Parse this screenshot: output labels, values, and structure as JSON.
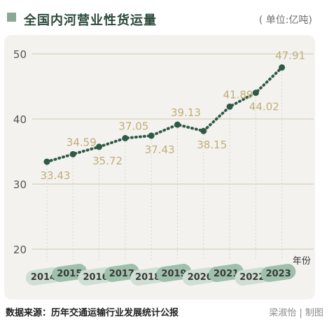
{
  "header": {
    "title": "全国内河营业性货运量",
    "unit": "( 单位:亿吨)"
  },
  "footer": {
    "source": "数据来源：历年交通运输行业发展统计公报",
    "credit": "梁淑怡 | 制图"
  },
  "colors": {
    "line": "#2f5a45",
    "label": "#c2ad7a",
    "grid": "#cfc9a8",
    "pill_dark": "#9fc0ab",
    "pill_light": "#cfdfd3",
    "tick": "#555555"
  },
  "chart_data": {
    "type": "line",
    "xlabel": "年份",
    "ylabel": "",
    "ylim": [
      20,
      50
    ],
    "yticks": [
      20,
      30,
      40,
      50
    ],
    "grid": true,
    "line_style": "dotted",
    "x": [
      "2014",
      "2015",
      "2016",
      "2017",
      "2018",
      "2019",
      "2020",
      "2021",
      "2022",
      "2023"
    ],
    "series": [
      {
        "values": [
          33.43,
          34.59,
          35.72,
          37.05,
          37.43,
          39.13,
          38.15,
          41.89,
          44.02,
          47.91
        ],
        "labels": [
          "33.43",
          "34.59",
          "35.72",
          "37.05",
          "37.43",
          "39.13",
          "38.15",
          "41.89",
          "44.02",
          "47.91"
        ],
        "label_position": [
          "below",
          "above",
          "below",
          "above",
          "below",
          "above",
          "below",
          "above",
          "below",
          "above"
        ]
      }
    ]
  }
}
